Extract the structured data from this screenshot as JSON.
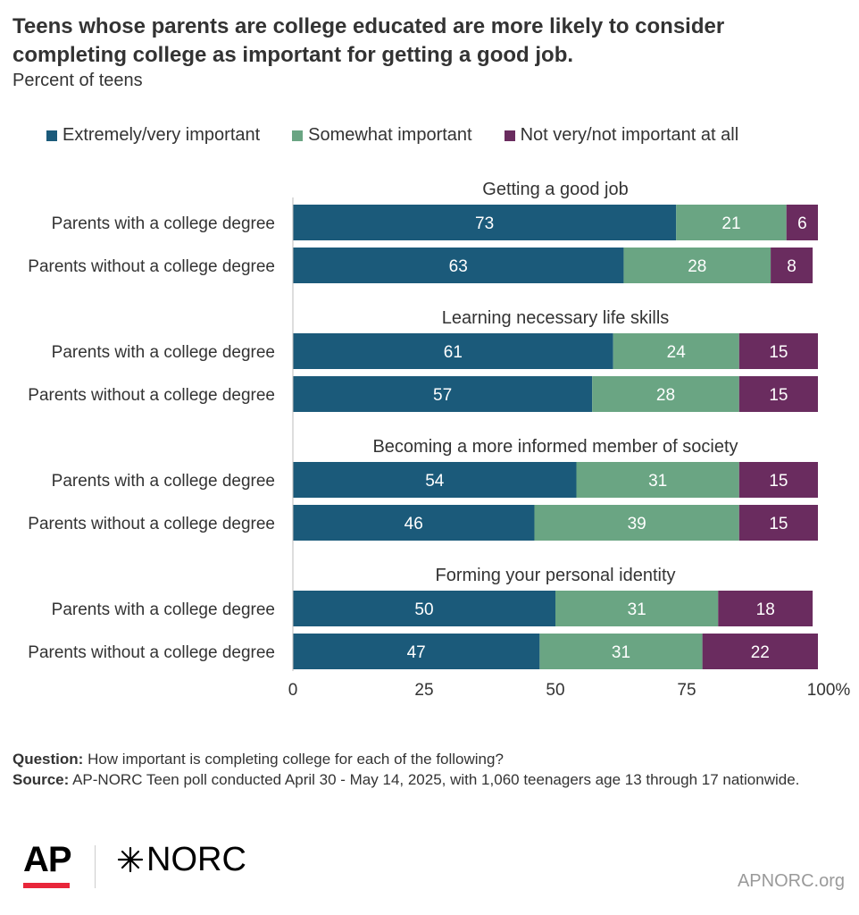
{
  "chart_data": {
    "type": "bar",
    "orientation": "horizontal-stacked",
    "title": "Teens whose parents are college educated are more likely to consider completing college as important for getting a good job.",
    "subtitle": "Percent of teens",
    "legend": [
      "Extremely/very important",
      "Somewhat important",
      "Not very/not important at all"
    ],
    "legend_placement": "top",
    "colors": [
      "#1b5a7a",
      "#6aa583",
      "#6a2c5f"
    ],
    "xlim": [
      0,
      100
    ],
    "x_ticks": [
      "0",
      "25",
      "50",
      "75",
      "100%"
    ],
    "groups": [
      {
        "title": "Getting a good job",
        "rows": [
          {
            "label": "Parents with a college degree",
            "values": [
              73,
              21,
              6
            ]
          },
          {
            "label": "Parents without  a college degree",
            "values": [
              63,
              28,
              8
            ]
          }
        ]
      },
      {
        "title": "Learning necessary life skills",
        "rows": [
          {
            "label": "Parents with a college degree",
            "values": [
              61,
              24,
              15
            ]
          },
          {
            "label": "Parents without  a college degree",
            "values": [
              57,
              28,
              15
            ]
          }
        ]
      },
      {
        "title": "Becoming a more informed member of society",
        "rows": [
          {
            "label": "Parents with a college degree",
            "values": [
              54,
              31,
              15
            ]
          },
          {
            "label": "Parents without  a college degree",
            "values": [
              46,
              39,
              15
            ]
          }
        ]
      },
      {
        "title": "Forming your personal identity",
        "rows": [
          {
            "label": "Parents with a college degree",
            "values": [
              50,
              31,
              18
            ]
          },
          {
            "label": "Parents without  a college degree",
            "values": [
              47,
              31,
              22
            ]
          }
        ]
      }
    ]
  },
  "notes": {
    "question_label": "Question:",
    "question_text": " How important is completing college for each of the following?",
    "source_label": "Source:",
    "source_text": " AP-NORC Teen poll conducted April 30 - May 14, 2025, with 1,060 teenagers age 13 through 17 nationwide."
  },
  "logos": {
    "ap": "AP",
    "norc": "NORC"
  },
  "site": "APNORC.org"
}
